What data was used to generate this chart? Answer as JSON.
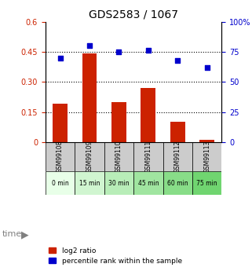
{
  "title": "GDS2583 / 1067",
  "samples": [
    "GSM99108",
    "GSM99109",
    "GSM99110",
    "GSM99111",
    "GSM99112",
    "GSM99113"
  ],
  "time_labels": [
    "0 min",
    "15 min",
    "30 min",
    "45 min",
    "60 min",
    "75 min"
  ],
  "log2_ratios": [
    0.19,
    0.44,
    0.2,
    0.27,
    0.1,
    0.01
  ],
  "percentile_ranks": [
    70,
    80,
    75,
    76,
    68,
    62
  ],
  "bar_color": "#cc2200",
  "dot_color": "#0000cc",
  "ylim_left": [
    0,
    0.6
  ],
  "ylim_right": [
    0,
    100
  ],
  "yticks_left": [
    0,
    0.15,
    0.3,
    0.45,
    0.6
  ],
  "yticks_right": [
    0,
    25,
    50,
    75,
    100
  ],
  "ytick_labels_left": [
    "0",
    "0.15",
    "0.30",
    "0.45",
    "0.6"
  ],
  "ytick_labels_right": [
    "0",
    "25",
    "50",
    "75",
    "100%"
  ],
  "hline_values": [
    0.15,
    0.3,
    0.45
  ],
  "time_colors": [
    "#ccffcc",
    "#bbeecc",
    "#aaddbb",
    "#99ccaa",
    "#88bb99",
    "#77dd77"
  ],
  "time_bg_colors": [
    "#e8ffe8",
    "#d8f8d8",
    "#c8f0c8",
    "#b8e8b8",
    "#a8e0a8",
    "#88dd88"
  ],
  "sample_bg_color": "#cccccc",
  "legend_bar_label": "log2 ratio",
  "legend_dot_label": "percentile rank within the sample",
  "time_arrow_label": "time"
}
